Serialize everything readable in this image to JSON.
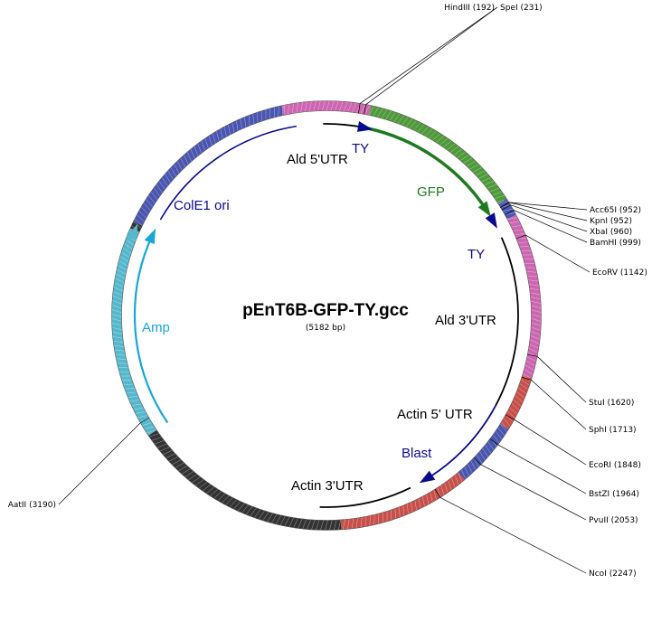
{
  "plasmid": {
    "name": "pEnT6B-GFP-TY.gcc",
    "size_label": "(5182 bp)",
    "length_bp": 5182
  },
  "colors": {
    "backbone_pink": "#cc66b0",
    "gfp_green": "#4f9a3a",
    "gfp_arrow": "#1f7a1f",
    "red_segment": "#c8504a",
    "navy_segment": "#4a55b0",
    "black_segment": "#333333",
    "cyan_segment": "#55b8cc",
    "amp_arrow": "#1aa6d6",
    "dark_blue": "#0a0a8c"
  },
  "restriction_sites": [
    {
      "label": "HindIII (192)",
      "position_bp": 192
    },
    {
      "label": "SpeI (231)",
      "position_bp": 231
    },
    {
      "label": "Acc65I (952)",
      "position_bp": 952
    },
    {
      "label": "KpnI (952)",
      "position_bp": 952
    },
    {
      "label": "XbaI (960)",
      "position_bp": 960
    },
    {
      "label": "BamHI (999)",
      "position_bp": 999
    },
    {
      "label": "EcoRV (1142)",
      "position_bp": 1142
    },
    {
      "label": "StuI (1620)",
      "position_bp": 1620
    },
    {
      "label": "SphI (1713)",
      "position_bp": 1713
    },
    {
      "label": "EcoRI (1848)",
      "position_bp": 1848
    },
    {
      "label": "BstZI (1964)",
      "position_bp": 1964
    },
    {
      "label": "PvuII (2053)",
      "position_bp": 2053
    },
    {
      "label": "NcoI (2247)",
      "position_bp": 2247
    },
    {
      "label": "AatII (3190)",
      "position_bp": 3190
    }
  ],
  "features": [
    {
      "label": "Ald 5'UTR",
      "color": "#000000"
    },
    {
      "label": "TY",
      "color": "#0a0a8c"
    },
    {
      "label": "GFP",
      "color": "#1f7a1f"
    },
    {
      "label": "TY",
      "color": "#0a0a8c"
    },
    {
      "label": "Ald 3'UTR",
      "color": "#000000"
    },
    {
      "label": "Actin 5' UTR",
      "color": "#000000"
    },
    {
      "label": "Blast",
      "color": "#0a0a8c"
    },
    {
      "label": "Actin 3'UTR",
      "color": "#000000"
    },
    {
      "label": "Amp",
      "color": "#1aa6d6"
    },
    {
      "label": "ColE1 ori",
      "color": "#0a0a8c"
    }
  ]
}
